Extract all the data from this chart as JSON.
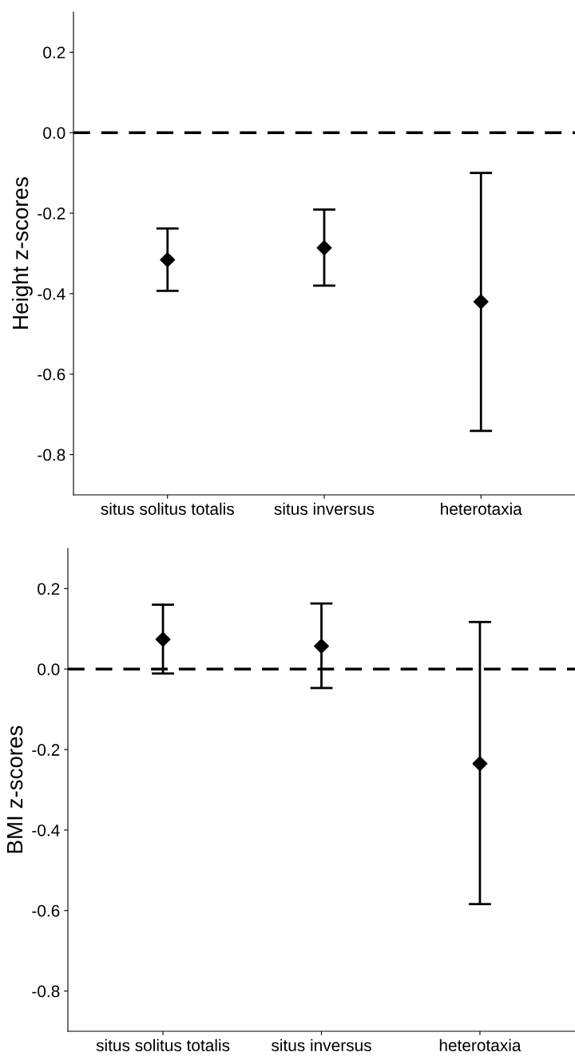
{
  "chart_data": [
    {
      "type": "scatter",
      "ylabel": "Height z-scores",
      "categories": [
        "situs solitus totalis",
        "situs inversus",
        "heterotaxia"
      ],
      "series": [
        {
          "color": "#000000",
          "values": [
            -0.316,
            -0.286,
            -0.42
          ],
          "errors": [
            [
              -0.393,
              -0.238
            ],
            [
              -0.38,
              -0.191
            ],
            [
              -0.741,
              -0.1
            ]
          ]
        }
      ],
      "ylim": [
        -0.9,
        0.3
      ],
      "yticks": [
        {
          "value": -0.8,
          "label": "-0.8"
        },
        {
          "value": -0.6,
          "label": "-0.6"
        },
        {
          "value": -0.4,
          "label": "-0.4"
        },
        {
          "value": -0.2,
          "label": "-0.2"
        },
        {
          "value": 0,
          "label": "0.0"
        },
        {
          "value": 0.2,
          "label": "0.2"
        }
      ],
      "ref_lines": [
        {
          "axis": "y",
          "value": 0,
          "color": "#000000",
          "line_style": "dashed"
        }
      ],
      "marker": "diamond",
      "grid": false,
      "legend": false
    },
    {
      "type": "scatter",
      "ylabel": "BMI z-scores",
      "categories": [
        "situs solitus totalis",
        "situs inversus",
        "heterotaxia"
      ],
      "series": [
        {
          "color": "#000000",
          "values": [
            0.074,
            0.057,
            -0.235
          ],
          "errors": [
            [
              -0.011,
              0.16
            ],
            [
              -0.047,
              0.163
            ],
            [
              -0.584,
              0.117
            ]
          ]
        }
      ],
      "ylim": [
        -0.9,
        0.3
      ],
      "yticks": [
        {
          "value": -0.8,
          "label": "-0.8"
        },
        {
          "value": -0.6,
          "label": "-0.6"
        },
        {
          "value": -0.4,
          "label": "-0.4"
        },
        {
          "value": -0.2,
          "label": "-0.2"
        },
        {
          "value": 0,
          "label": "0.0"
        },
        {
          "value": 0.2,
          "label": "0.2"
        }
      ],
      "ref_lines": [
        {
          "axis": "y",
          "value": 0,
          "color": "#000000",
          "line_style": "dashed"
        }
      ],
      "marker": "diamond",
      "grid": false,
      "legend": false
    }
  ]
}
